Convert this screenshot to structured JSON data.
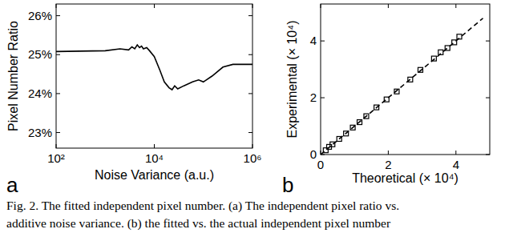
{
  "chart_data": [
    {
      "type": "line",
      "annotations": [
        "a"
      ],
      "xlabel": "Noise Variance (a.u.)",
      "ylabel": "Pixel Number Ratio",
      "log": "x",
      "xlim": [
        100,
        1000000
      ],
      "xticks": [
        {
          "value": 100,
          "label": "10²"
        },
        {
          "value": 10000,
          "label": "10⁴"
        },
        {
          "value": 1000000,
          "label": "10⁶"
        }
      ],
      "ylim": [
        22.6,
        26.3
      ],
      "yticks": [
        {
          "value": 23,
          "label": "23%"
        },
        {
          "value": 24,
          "label": "24%"
        },
        {
          "value": 25,
          "label": "25%"
        },
        {
          "value": 26,
          "label": "26%"
        }
      ],
      "color": "#000000",
      "x": [
        100,
        300,
        1000,
        2000,
        3000,
        3500,
        4000,
        4500,
        5000,
        5500,
        6000,
        7000,
        8000,
        10000,
        13000,
        16000,
        20000,
        23000,
        26000,
        30000,
        40000,
        60000,
        80000,
        100000,
        150000,
        250000,
        400000,
        1000000
      ],
      "values": [
        25.08,
        25.09,
        25.1,
        25.15,
        25.12,
        25.2,
        25.15,
        25.25,
        25.18,
        25.22,
        25.15,
        25.18,
        25.1,
        24.95,
        24.6,
        24.3,
        24.15,
        24.1,
        24.2,
        24.12,
        24.2,
        24.3,
        24.35,
        24.3,
        24.45,
        24.68,
        24.75,
        24.75
      ]
    },
    {
      "type": "scatter",
      "annotations": [
        "b"
      ],
      "xlabel": "Theoretical (× 10⁴)",
      "ylabel": "Experimental (× 10⁴)",
      "xlim": [
        0,
        5
      ],
      "xticks": [
        0,
        2,
        4
      ],
      "ylim": [
        0,
        5.3
      ],
      "yticks": [
        0,
        2,
        4
      ],
      "series": [
        {
          "type": "scatter",
          "marker": "square",
          "color": "#000000",
          "x": [
            0.15,
            0.25,
            0.35,
            0.55,
            0.75,
            0.95,
            1.15,
            1.35,
            1.65,
            1.95,
            2.25,
            2.65,
            2.95,
            3.35,
            3.55,
            3.75,
            3.95,
            4.1
          ],
          "values": [
            0.15,
            0.27,
            0.36,
            0.55,
            0.74,
            0.95,
            1.14,
            1.35,
            1.66,
            1.94,
            2.22,
            2.64,
            2.98,
            3.38,
            3.6,
            3.75,
            3.95,
            4.15
          ]
        },
        {
          "type": "line",
          "line_style": "dashed",
          "color": "#000000",
          "x": [
            0,
            4.8
          ],
          "values": [
            0,
            4.8
          ]
        }
      ]
    }
  ],
  "caption": [
    "Fig. 2. The fitted independent pixel number. (a) The independent pixel ratio vs.",
    "additive noise variance. (b) the fitted vs. the actual independent pixel number"
  ]
}
